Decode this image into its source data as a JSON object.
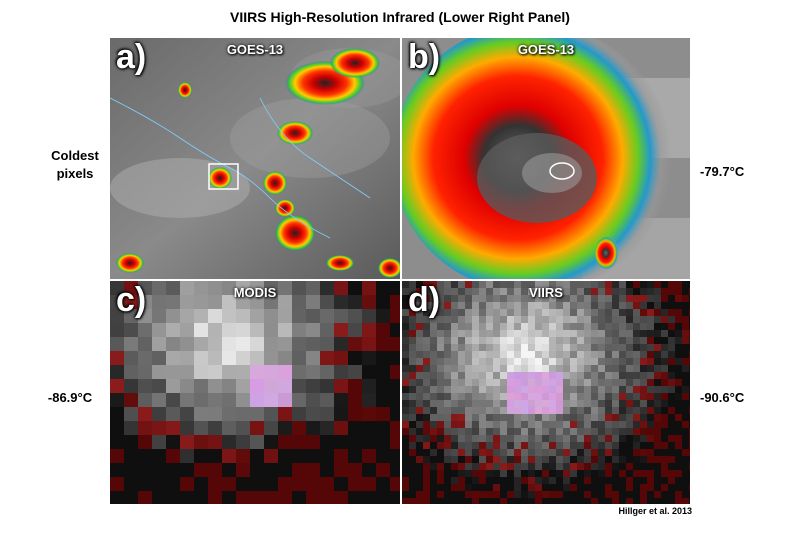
{
  "title": "VIIRS High-Resolution Infrared (Lower Right Panel)",
  "left_label_line1": "Coldest",
  "left_label_line2": "pixels",
  "temps": {
    "b": "-79.7°C",
    "c": "-86.9°C",
    "d": "-90.6°C"
  },
  "credit": "Hillger et al. 2013",
  "panels": {
    "a": {
      "letter": "a)",
      "satellite": "GOES-13"
    },
    "b": {
      "letter": "b)",
      "satellite": "GOES-13"
    },
    "c": {
      "letter": "c)",
      "satellite": "MODIS"
    },
    "d": {
      "letter": "d)",
      "satellite": "VIIRS"
    }
  }
}
